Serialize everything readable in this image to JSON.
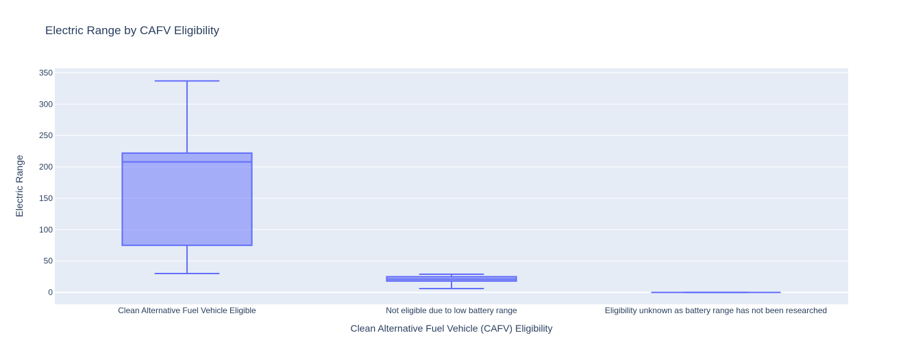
{
  "chart_data": {
    "type": "box",
    "title": "Electric Range by CAFV Eligibility",
    "xlabel": "Clean Alternative Fuel Vehicle (CAFV) Eligibility",
    "ylabel": "Electric Range",
    "ylim": [
      -19,
      357
    ],
    "yticks": [
      0,
      50,
      100,
      150,
      200,
      250,
      300,
      350
    ],
    "ytick_labels": [
      "0",
      "50",
      "100",
      "150",
      "200",
      "250",
      "300",
      "350"
    ],
    "grid": true,
    "categories": [
      "Clean Alternative Fuel Vehicle Eligible",
      "Not eligible due to low battery range",
      "Eligibility unknown as battery range has not been researched"
    ],
    "boxes": [
      {
        "lowerfence": 30,
        "q1": 75,
        "median": 208,
        "q3": 222,
        "upperfence": 337
      },
      {
        "lowerfence": 6,
        "q1": 18,
        "median": 21,
        "q3": 25,
        "upperfence": 29
      },
      {
        "lowerfence": 0,
        "q1": 0,
        "median": 0,
        "q3": 0,
        "upperfence": 0
      }
    ],
    "colors": {
      "box_fill": "#636efa",
      "box_line": "#636efa",
      "plot_bg": "#e5ecf6",
      "grid": "#ffffff",
      "text": "#2a3f5f"
    }
  }
}
